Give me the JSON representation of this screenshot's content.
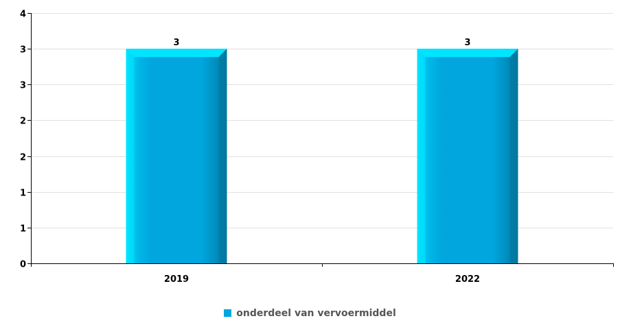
{
  "chart_data": {
    "type": "bar",
    "title": "",
    "xlabel": "",
    "ylabel": "",
    "categories": [
      "2019",
      "2022"
    ],
    "series": [
      {
        "name": "onderdeel van vervoermiddel",
        "values": [
          3,
          3
        ]
      }
    ],
    "value_labels": [
      "3",
      "3"
    ],
    "y_ticks": [
      {
        "value": 0,
        "label": "0"
      },
      {
        "value": 0.5,
        "label": "1"
      },
      {
        "value": 1.0,
        "label": "1"
      },
      {
        "value": 1.5,
        "label": "2"
      },
      {
        "value": 2.0,
        "label": "2"
      },
      {
        "value": 2.5,
        "label": "3"
      },
      {
        "value": 3.0,
        "label": "3"
      },
      {
        "value": 3.5,
        "label": "4"
      }
    ],
    "ylim": [
      0,
      3.5
    ],
    "grid": true,
    "legend_position": "bottom-center",
    "colors": {
      "bar": "#00a6dd",
      "bar_light": "#00e5ff",
      "bar_dark": "#00789f",
      "grid": "#e0e0e0",
      "axis": "#000000"
    }
  }
}
